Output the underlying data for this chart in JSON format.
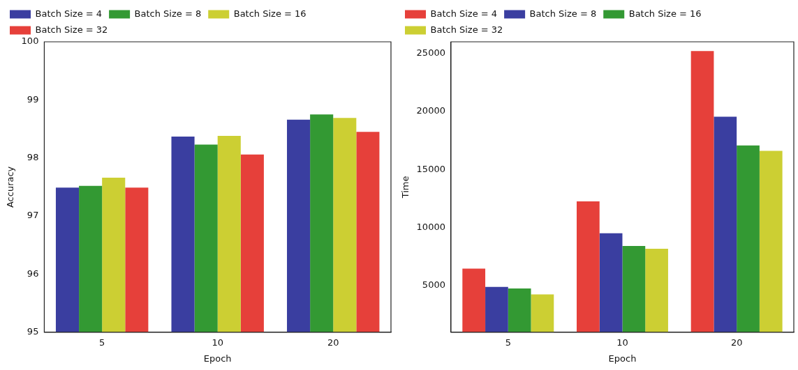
{
  "chart_data": [
    {
      "type": "bar",
      "xlabel": "Epoch",
      "ylabel": "Accuracy",
      "categories": [
        "5",
        "10",
        "20"
      ],
      "ylim": [
        95,
        100
      ],
      "yticks": [
        95,
        96,
        97,
        98,
        99,
        100
      ],
      "legend": "top left",
      "grid": false,
      "series": [
        {
          "name": "Batch Size = 4",
          "color": "#3a3ea0",
          "values": [
            97.49,
            98.37,
            98.66
          ]
        },
        {
          "name": "Batch Size = 8",
          "color": "#339933",
          "values": [
            97.52,
            98.23,
            98.75
          ]
        },
        {
          "name": "Batch Size = 16",
          "color": "#cccf33",
          "values": [
            97.66,
            98.38,
            98.69
          ]
        },
        {
          "name": "Batch Size = 32",
          "color": "#e6403a",
          "values": [
            97.49,
            98.06,
            98.45
          ]
        }
      ]
    },
    {
      "type": "bar",
      "xlabel": "Epoch",
      "ylabel": "Time",
      "categories": [
        "5",
        "10",
        "20"
      ],
      "ylim": [
        1000,
        26000
      ],
      "yticks": [
        5000,
        10000,
        15000,
        20000,
        25000
      ],
      "legend": "top left",
      "grid": false,
      "series": [
        {
          "name": "Batch Size = 4",
          "color": "#e6403a",
          "values": [
            6480,
            12260,
            25200
          ]
        },
        {
          "name": "Batch Size = 8",
          "color": "#3a3ea0",
          "values": [
            4900,
            9520,
            19550
          ]
        },
        {
          "name": "Batch Size = 16",
          "color": "#339933",
          "values": [
            4760,
            8420,
            17080
          ]
        },
        {
          "name": "Batch Size = 32",
          "color": "#cccf33",
          "values": [
            4250,
            8190,
            16620
          ]
        }
      ]
    }
  ]
}
